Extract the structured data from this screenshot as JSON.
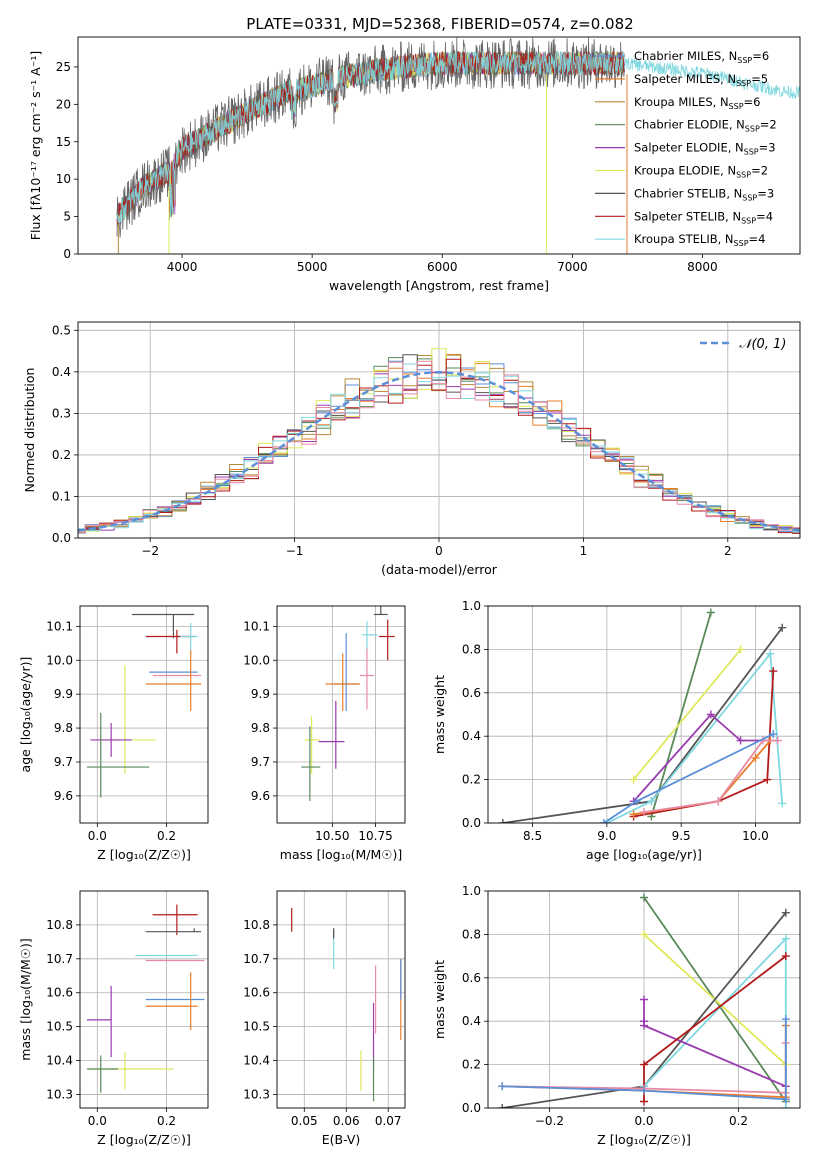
{
  "figure": {
    "title": "PLATE=0331, MJD=52368, FIBERID=0574, z=0.082"
  },
  "chart_data": [
    {
      "id": "spectrum",
      "type": "line",
      "xlabel": "wavelength [Angstrom, rest frame]",
      "ylabel": "Flux [fλ10⁻¹⁷ erg cm⁻² s⁻¹ A⁻¹]",
      "xlim": [
        3200,
        8750
      ],
      "ylim": [
        0,
        29
      ],
      "xticks": [
        4000,
        5000,
        6000,
        7000,
        8000
      ],
      "yticks": [
        0,
        5,
        10,
        15,
        20,
        25
      ],
      "legend_position": "upper-right",
      "series": [
        {
          "name": "Chabrier MILES, N",
          "nssp": "6",
          "color": "#5b8fd9"
        },
        {
          "name": "Salpeter MILES, N",
          "nssp": "5",
          "color": "#e87d2b"
        },
        {
          "name": "Kroupa MILES, N",
          "nssp": "6",
          "color": "#b5893a"
        },
        {
          "name": "Chabrier ELODIE, N",
          "nssp": "2",
          "color": "#5a8a5a"
        },
        {
          "name": "Salpeter ELODIE, N",
          "nssp": "3",
          "color": "#9a3bb0"
        },
        {
          "name": "Kroupa ELODIE, N",
          "nssp": "2",
          "color": "#dfe85a"
        },
        {
          "name": "Chabrier STELIB, N",
          "nssp": "3",
          "color": "#555555"
        },
        {
          "name": "Salpeter STELIB, N",
          "nssp": "4",
          "color": "#b31b1b"
        },
        {
          "name": "Kroupa STELIB, N",
          "nssp": "4",
          "color": "#80d8e0"
        }
      ],
      "continuum_x": [
        3500,
        3700,
        3900,
        4000,
        4200,
        4500,
        4800,
        5000,
        5200,
        5500,
        5800,
        6000,
        6300,
        6600,
        7000,
        7400
      ],
      "continuum_y": [
        5,
        9,
        11,
        14,
        16,
        19,
        21.5,
        22.5,
        23.5,
        24.5,
        25.2,
        25.5,
        25.5,
        25.5,
        25.5,
        25.5
      ],
      "extension_x": [
        7400,
        7700,
        8000,
        8300,
        8600,
        8750
      ],
      "extension_y": [
        25.5,
        24.8,
        24.2,
        23.0,
        21.8,
        21.5
      ]
    },
    {
      "id": "residuals",
      "type": "histogram",
      "xlabel": "(data-model)/error",
      "ylabel": "Normed distribution",
      "xlim": [
        -2.5,
        2.5
      ],
      "ylim": [
        0,
        0.52
      ],
      "xticks": [
        -2,
        -1,
        0,
        1,
        2
      ],
      "xtick_labels": [
        "−2",
        "−1",
        "0",
        "1",
        "2"
      ],
      "yticks": [
        0,
        0.1,
        0.2,
        0.3,
        0.4,
        0.5
      ],
      "ytick_labels": [
        "0.0",
        "0.1",
        "0.2",
        "0.3",
        "0.4",
        "0.5"
      ],
      "bin_width": 0.1,
      "reference_curve": {
        "label": "𝒩(0, 1)",
        "color": "#5b8fd9",
        "style": "dashed"
      }
    },
    {
      "id": "z_age",
      "type": "scatter",
      "xlabel": "Z [log₁₀(Z/Z☉)]",
      "ylabel": "age  [log₁₀(age/yr)]",
      "xlim": [
        -0.05,
        0.32
      ],
      "ylim": [
        9.52,
        10.16
      ],
      "xticks": [
        0.0,
        0.2
      ],
      "xtick_labels": [
        "0.0",
        "0.2"
      ],
      "yticks": [
        9.6,
        9.7,
        9.8,
        9.9,
        10.0,
        10.1
      ],
      "ytick_labels": [
        "9.6",
        "9.7",
        "9.8",
        "9.9",
        "10.0",
        "10.1"
      ],
      "points": [
        {
          "x": 0.22,
          "y": 10.135,
          "xerr": [
            0.12,
            0.06
          ],
          "yerr": [
            0.07,
            0.0
          ],
          "color": "#555555"
        },
        {
          "x": 0.23,
          "y": 10.07,
          "xerr": [
            0.09,
            0.05
          ],
          "yerr": [
            0.05,
            0.02
          ],
          "color": "#b31b1b"
        },
        {
          "x": 0.27,
          "y": 10.07,
          "xerr": [
            0.03,
            0.02
          ],
          "yerr": [
            0.04,
            0.04
          ],
          "color": "#80d8e0"
        },
        {
          "x": 0.23,
          "y": 9.965,
          "xerr": [
            0.08,
            0.06
          ],
          "yerr": [
            0.0,
            0.0
          ],
          "color": "#5b8fd9"
        },
        {
          "x": 0.23,
          "y": 9.955,
          "xerr": [
            0.07,
            0.07
          ],
          "yerr": [
            0.0,
            0.0
          ],
          "color": "#e88aa6"
        },
        {
          "x": 0.27,
          "y": 9.93,
          "xerr": [
            0.13,
            0.03
          ],
          "yerr": [
            0.08,
            0.1
          ],
          "color": "#e87d2b"
        },
        {
          "x": 0.08,
          "y": 9.765,
          "xerr": [
            0.08,
            0.09
          ],
          "yerr": [
            0.1,
            0.22
          ],
          "color": "#dfe85a"
        },
        {
          "x": 0.04,
          "y": 9.765,
          "xerr": [
            0.06,
            0.06
          ],
          "yerr": [
            0.05,
            0.05
          ],
          "color": "#9a3bb0"
        },
        {
          "x": 0.01,
          "y": 9.685,
          "xerr": [
            0.04,
            0.14
          ],
          "yerr": [
            0.09,
            0.16
          ],
          "color": "#5a8a5a"
        }
      ]
    },
    {
      "id": "mass_age",
      "type": "scatter",
      "xlabel": "mass [log₁₀(M/M☉)]",
      "ylabel": "",
      "xlim": [
        10.18,
        10.92
      ],
      "ylim": [
        9.52,
        10.16
      ],
      "xticks": [
        10.5,
        10.75
      ],
      "xtick_labels": [
        "10.50",
        "10.75"
      ],
      "yticks": [
        9.6,
        9.7,
        9.8,
        9.9,
        10.0,
        10.1
      ],
      "ytick_labels": [
        "9.6",
        "9.7",
        "9.8",
        "9.9",
        "10.0",
        "10.1"
      ],
      "points": [
        {
          "x": 10.78,
          "y": 10.135,
          "xerr": [
            0.04,
            0.04
          ],
          "yerr": [
            0.0,
            0.1
          ],
          "color": "#555555"
        },
        {
          "x": 10.82,
          "y": 10.07,
          "xerr": [
            0.05,
            0.04
          ],
          "yerr": [
            0.07,
            0.05
          ],
          "color": "#b31b1b"
        },
        {
          "x": 10.7,
          "y": 10.075,
          "xerr": [
            0.03,
            0.06
          ],
          "yerr": [
            0.05,
            0.04
          ],
          "color": "#80d8e0"
        },
        {
          "x": 10.58,
          "y": 9.93,
          "xerr": [
            0.07,
            0.07
          ],
          "yerr": [
            0.08,
            0.15
          ],
          "color": "#5b8fd9"
        },
        {
          "x": 10.56,
          "y": 9.93,
          "xerr": [
            0.1,
            0.1
          ],
          "yerr": [
            0.08,
            0.09
          ],
          "color": "#e87d2b"
        },
        {
          "x": 10.7,
          "y": 9.955,
          "xerr": [
            0.04,
            0.04
          ],
          "yerr": [
            0.1,
            0.08
          ],
          "color": "#e88aa6"
        },
        {
          "x": 10.38,
          "y": 9.765,
          "xerr": [
            0.04,
            0.05
          ],
          "yerr": [
            0.1,
            0.07
          ],
          "color": "#dfe85a"
        },
        {
          "x": 10.52,
          "y": 9.76,
          "xerr": [
            0.1,
            0.05
          ],
          "yerr": [
            0.08,
            0.12
          ],
          "color": "#9a3bb0"
        },
        {
          "x": 10.37,
          "y": 9.685,
          "xerr": [
            0.05,
            0.06
          ],
          "yerr": [
            0.1,
            0.12
          ],
          "color": "#5a8a5a"
        }
      ]
    },
    {
      "id": "age_weight",
      "type": "line",
      "xlabel": "age  [log₁₀(age/yr)]",
      "ylabel": "mass weight",
      "xlim": [
        8.2,
        10.3
      ],
      "ylim": [
        0,
        1.0
      ],
      "xticks": [
        8.5,
        9.0,
        9.5,
        10.0
      ],
      "xtick_labels": [
        "8.5",
        "9.0",
        "9.5",
        "10.0"
      ],
      "yticks": [
        0,
        0.2,
        0.4,
        0.6,
        0.8,
        1.0
      ],
      "ytick_labels": [
        "0.0",
        "0.2",
        "0.4",
        "0.6",
        "0.8",
        "1.0"
      ],
      "series": [
        {
          "color": "#5a8a5a",
          "x": [
            9.3,
            9.7
          ],
          "y": [
            0.03,
            0.97
          ]
        },
        {
          "color": "#dfe85a",
          "x": [
            9.18,
            9.9
          ],
          "y": [
            0.2,
            0.8
          ]
        },
        {
          "color": "#555555",
          "x": [
            8.3,
            9.3,
            10.18
          ],
          "y": [
            0.0,
            0.1,
            0.9
          ]
        },
        {
          "color": "#80d8e0",
          "x": [
            9.0,
            9.3,
            10.1,
            10.18
          ],
          "y": [
            0.0,
            0.1,
            0.78,
            0.09
          ]
        },
        {
          "color": "#9a3bb0",
          "x": [
            9.18,
            9.7,
            9.9,
            10.1
          ],
          "y": [
            0.1,
            0.5,
            0.38,
            0.38
          ]
        },
        {
          "color": "#b31b1b",
          "x": [
            9.18,
            9.75,
            10.08,
            10.12
          ],
          "y": [
            0.03,
            0.1,
            0.2,
            0.7
          ]
        },
        {
          "color": "#e87d2b",
          "x": [
            9.18,
            9.75,
            10.0,
            10.1
          ],
          "y": [
            0.04,
            0.1,
            0.3,
            0.38
          ]
        },
        {
          "color": "#e88aa6",
          "x": [
            9.25,
            9.75,
            10.05,
            10.15
          ],
          "y": [
            0.05,
            0.1,
            0.38,
            0.38
          ]
        },
        {
          "color": "#5b8fd9",
          "x": [
            8.98,
            9.2,
            10.12
          ],
          "y": [
            0.0,
            0.1,
            0.41
          ]
        }
      ]
    },
    {
      "id": "z_mass",
      "type": "scatter",
      "xlabel": "Z [log₁₀(Z/Z☉)]",
      "ylabel": "mass [log₁₀(M/M☉)]",
      "xlim": [
        -0.05,
        0.32
      ],
      "ylim": [
        10.26,
        10.9
      ],
      "xticks": [
        0.0,
        0.2
      ],
      "xtick_labels": [
        "0.0",
        "0.2"
      ],
      "yticks": [
        10.3,
        10.4,
        10.5,
        10.6,
        10.7,
        10.8
      ],
      "ytick_labels": [
        "10.3",
        "10.4",
        "10.5",
        "10.6",
        "10.7",
        "10.8"
      ],
      "points": [
        {
          "x": 0.23,
          "y": 10.83,
          "xerr": [
            0.07,
            0.06
          ],
          "yerr": [
            0.06,
            0.03
          ],
          "color": "#b31b1b"
        },
        {
          "x": 0.28,
          "y": 10.78,
          "xerr": [
            0.14,
            0.02
          ],
          "yerr": [
            0.0,
            0.01
          ],
          "color": "#555555"
        },
        {
          "x": 0.27,
          "y": 10.71,
          "xerr": [
            0.16,
            0.02
          ],
          "yerr": [
            0.0,
            0.0
          ],
          "color": "#80d8e0"
        },
        {
          "x": 0.22,
          "y": 10.695,
          "xerr": [
            0.08,
            0.09
          ],
          "yerr": [
            0.0,
            0.0
          ],
          "color": "#e88aa6"
        },
        {
          "x": 0.22,
          "y": 10.58,
          "xerr": [
            0.08,
            0.09
          ],
          "yerr": [
            0.0,
            0.0
          ],
          "color": "#5b8fd9"
        },
        {
          "x": 0.27,
          "y": 10.56,
          "xerr": [
            0.13,
            0.02
          ],
          "yerr": [
            0.07,
            0.1
          ],
          "color": "#e87d2b"
        },
        {
          "x": 0.04,
          "y": 10.52,
          "xerr": [
            0.07,
            0.0
          ],
          "yerr": [
            0.11,
            0.1
          ],
          "color": "#9a3bb0"
        },
        {
          "x": 0.08,
          "y": 10.375,
          "xerr": [
            0.1,
            0.14
          ],
          "yerr": [
            0.06,
            0.05
          ],
          "color": "#dfe85a"
        },
        {
          "x": 0.01,
          "y": 10.375,
          "xerr": [
            0.04,
            0.05
          ],
          "yerr": [
            0.07,
            0.04
          ],
          "color": "#5a8a5a"
        }
      ]
    },
    {
      "id": "ebv_mass",
      "type": "scatter",
      "xlabel": "E(B-V)",
      "ylabel": "",
      "xlim": [
        0.0435,
        0.074
      ],
      "ylim": [
        10.26,
        10.9
      ],
      "xticks": [
        0.05,
        0.06,
        0.07
      ],
      "xtick_labels": [
        "0.05",
        "0.06",
        "0.07"
      ],
      "yticks": [
        10.3,
        10.4,
        10.5,
        10.6,
        10.7,
        10.8
      ],
      "ytick_labels": [
        "10.3",
        "10.4",
        "10.5",
        "10.6",
        "10.7",
        "10.8"
      ],
      "points": [
        {
          "x": 0.047,
          "y": 10.82,
          "xerr": [
            0,
            0
          ],
          "yerr": [
            0.04,
            0.03
          ],
          "color": "#b31b1b"
        },
        {
          "x": 0.057,
          "y": 10.72,
          "xerr": [
            0,
            0
          ],
          "yerr": [
            0.05,
            0.07
          ],
          "color": "#80d8e0"
        },
        {
          "x": 0.057,
          "y": 10.76,
          "xerr": [
            0,
            0
          ],
          "yerr": [
            0.0,
            0.03
          ],
          "color": "#555555"
        },
        {
          "x": 0.067,
          "y": 10.58,
          "xerr": [
            0,
            0
          ],
          "yerr": [
            0.1,
            0.1
          ],
          "color": "#e88aa6"
        },
        {
          "x": 0.073,
          "y": 10.58,
          "xerr": [
            0,
            0
          ],
          "yerr": [
            0.12,
            0.12
          ],
          "color": "#e87d2b"
        },
        {
          "x": 0.073,
          "y": 10.58,
          "xerr": [
            0,
            0
          ],
          "yerr": [
            0.0,
            0.12
          ],
          "color": "#5b8fd9"
        },
        {
          "x": 0.0665,
          "y": 10.47,
          "xerr": [
            0,
            0
          ],
          "yerr": [
            0.1,
            0.1
          ],
          "color": "#9a3bb0"
        },
        {
          "x": 0.0635,
          "y": 10.35,
          "xerr": [
            0,
            0
          ],
          "yerr": [
            0.04,
            0.08
          ],
          "color": "#dfe85a"
        },
        {
          "x": 0.0665,
          "y": 10.33,
          "xerr": [
            0,
            0
          ],
          "yerr": [
            0.05,
            0.08
          ],
          "color": "#5a8a5a"
        }
      ]
    },
    {
      "id": "z_weight",
      "type": "line",
      "xlabel": "Z [log₁₀(Z/Z☉)]",
      "ylabel": "mass weight",
      "xlim": [
        -0.33,
        0.33
      ],
      "ylim": [
        0,
        1.0
      ],
      "xticks": [
        -0.2,
        0.0,
        0.2
      ],
      "xtick_labels": [
        "−0.2",
        "0.0",
        "0.2"
      ],
      "yticks": [
        0,
        0.2,
        0.4,
        0.6,
        0.8,
        1.0
      ],
      "ytick_labels": [
        "0.0",
        "0.2",
        "0.4",
        "0.6",
        "0.8",
        "1.0"
      ],
      "series": [
        {
          "color": "#5a8a5a",
          "x": [
            0.0,
            0.3
          ],
          "y": [
            0.97,
            0.03
          ]
        },
        {
          "color": "#dfe85a",
          "x": [
            0.0,
            0.3
          ],
          "y": [
            0.8,
            0.2
          ]
        },
        {
          "color": "#555555",
          "x": [
            -0.3,
            0.0,
            0.3
          ],
          "y": [
            0.0,
            0.1,
            0.9
          ]
        },
        {
          "color": "#80d8e0",
          "x": [
            0.0,
            0.3,
            0.3
          ],
          "y": [
            0.1,
            0.78,
            0.0
          ]
        },
        {
          "color": "#9a3bb0",
          "x": [
            0.0,
            0.0,
            0.0,
            0.3
          ],
          "y": [
            0.5,
            0.4,
            0.38,
            0.1
          ]
        },
        {
          "color": "#b31b1b",
          "x": [
            0.0,
            0.0,
            0.3
          ],
          "y": [
            0.03,
            0.2,
            0.7
          ]
        },
        {
          "color": "#e87d2b",
          "x": [
            -0.3,
            0.0,
            0.3,
            0.3
          ],
          "y": [
            0.1,
            0.08,
            0.05,
            0.38
          ]
        },
        {
          "color": "#e88aa6",
          "x": [
            -0.3,
            0.0,
            0.3,
            0.3
          ],
          "y": [
            0.1,
            0.09,
            0.07,
            0.3
          ]
        },
        {
          "color": "#5b8fd9",
          "x": [
            -0.3,
            0.0,
            0.3,
            0.3
          ],
          "y": [
            0.1,
            0.08,
            0.04,
            0.41
          ]
        }
      ]
    }
  ]
}
